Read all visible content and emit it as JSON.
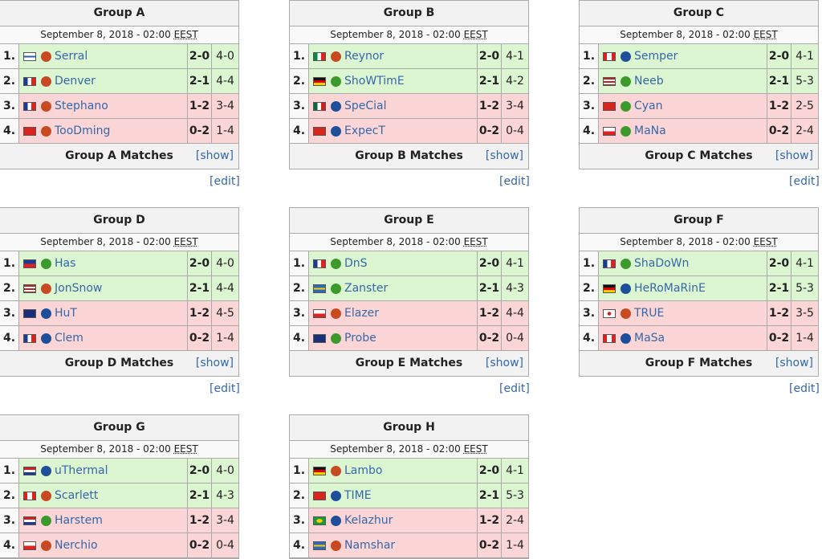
{
  "groups": [
    {
      "title": "Group A",
      "date": "September 8, 2018 - 02:00",
      "timezone": "EEST",
      "players": [
        [
          "1.",
          "Serral",
          "2-0",
          "4-0"
        ],
        [
          "2.",
          "Denver",
          "2-1",
          "4-4"
        ],
        [
          "3.",
          "Stephano",
          "1-2",
          "3-4"
        ],
        [
          "4.",
          "TooDming",
          "0-2",
          "1-4"
        ]
      ],
      "matches": "Group A Matches",
      "show": "[show]",
      "edit": "[edit]"
    },
    {
      "title": "Group B",
      "date": "September 8, 2018 - 02:00",
      "timezone": "EEST",
      "players": [
        [
          "1.",
          "Reynor",
          "2-0",
          "4-1"
        ],
        [
          "2.",
          "ShoWTimE",
          "2-1",
          "4-2"
        ],
        [
          "3.",
          "SpeCial",
          "1-2",
          "3-4"
        ],
        [
          "4.",
          "ExpecT",
          "0-2",
          "0-4"
        ]
      ],
      "matches": "Group B Matches",
      "show": "[show]",
      "edit": "[edit]"
    },
    {
      "title": "Group C",
      "date": "September 8, 2018 - 02:00",
      "timezone": "EEST",
      "players": [
        [
          "1.",
          "Semper",
          "2-0",
          "4-1"
        ],
        [
          "2.",
          "Neeb",
          "2-1",
          "5-3"
        ],
        [
          "3.",
          "Cyan",
          "1-2",
          "2-5"
        ],
        [
          "4.",
          "MaNa",
          "0-2",
          "2-4"
        ]
      ],
      "matches": "Group C Matches",
      "show": "[show]",
      "edit": "[edit]"
    },
    {
      "title": "Group D",
      "date": "September 8, 2018 - 02:00",
      "timezone": "EEST",
      "players": [
        [
          "1.",
          "Has",
          "2-0",
          "4-0"
        ],
        [
          "2.",
          "JonSnow",
          "2-1",
          "4-4"
        ],
        [
          "3.",
          "HuT",
          "1-2",
          "4-5"
        ],
        [
          "4.",
          "Clem",
          "0-2",
          "1-4"
        ]
      ],
      "matches": "Group D Matches",
      "show": "[show]",
      "edit": "[edit]"
    },
    {
      "title": "Group E",
      "date": "September 8, 2018 - 02:00",
      "timezone": "EEST",
      "players": [
        [
          "1.",
          "DnS",
          "2-0",
          "4-1"
        ],
        [
          "2.",
          "Zanster",
          "2-1",
          "4-3"
        ],
        [
          "3.",
          "Elazer",
          "1-2",
          "4-4"
        ],
        [
          "4.",
          "Probe",
          "0-2",
          "0-4"
        ]
      ],
      "matches": "Group E Matches",
      "show": "[show]",
      "edit": "[edit]"
    },
    {
      "title": "Group F",
      "date": "September 8, 2018 - 02:00",
      "timezone": "EEST",
      "players": [
        [
          "1.",
          "ShaDoWn",
          "2-0",
          "4-1"
        ],
        [
          "2.",
          "HeRoMaRinE",
          "2-1",
          "5-3"
        ],
        [
          "3.",
          "TRUE",
          "1-2",
          "3-5"
        ],
        [
          "4.",
          "MaSa",
          "0-2",
          "1-4"
        ]
      ],
      "matches": "Group F Matches",
      "show": "[show]",
      "edit": "[edit]"
    },
    {
      "title": "Group G",
      "date": "September 8, 2018 - 02:00",
      "timezone": "EEST",
      "players": [
        [
          "1.",
          "uThermal",
          "2-0",
          "4-0"
        ],
        [
          "2.",
          "Scarlett",
          "2-1",
          "4-3"
        ],
        [
          "3.",
          "Harstem",
          "1-2",
          "3-4"
        ],
        [
          "4.",
          "Nerchio",
          "0-2",
          "0-4"
        ]
      ]
    },
    {
      "title": "Group H",
      "date": "September 8, 2018 - 02:00",
      "timezone": "EEST",
      "players": [
        [
          "1.",
          "Lambo",
          "2-0",
          "4-1"
        ],
        [
          "2.",
          "TIME",
          "2-1",
          "5-3"
        ],
        [
          "3.",
          "Kelazhur",
          "1-2",
          "2-4"
        ],
        [
          "4.",
          "Namshar",
          "0-2",
          "1-4"
        ]
      ]
    }
  ]
}
